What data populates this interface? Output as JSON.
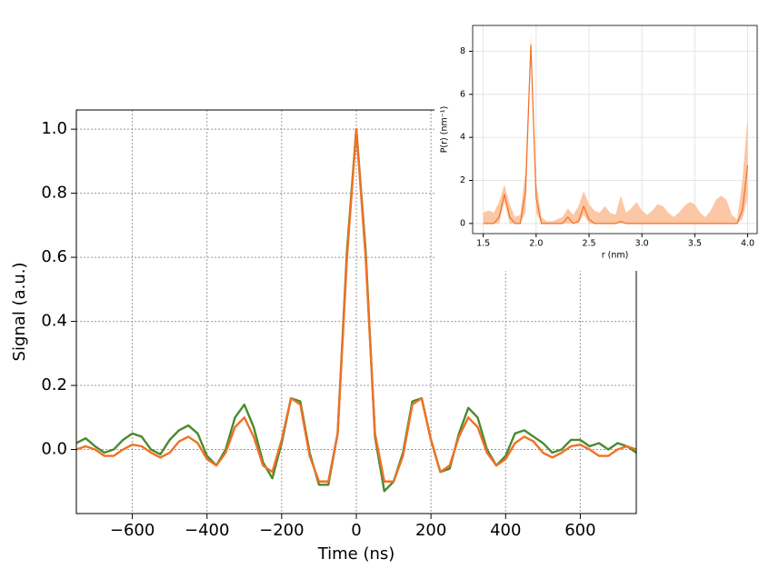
{
  "chart_data": [
    {
      "type": "line",
      "xlabel": "Time (ns)",
      "ylabel": "Signal (a.u.)",
      "x": [
        -750,
        -725,
        -700,
        -675,
        -650,
        -625,
        -600,
        -575,
        -550,
        -525,
        -500,
        -475,
        -450,
        -425,
        -400,
        -375,
        -350,
        -325,
        -300,
        -275,
        -250,
        -225,
        -200,
        -175,
        -150,
        -125,
        -100,
        -75,
        -50,
        -25,
        0,
        25,
        50,
        75,
        100,
        125,
        150,
        175,
        200,
        225,
        250,
        275,
        300,
        325,
        350,
        375,
        400,
        425,
        450,
        475,
        500,
        525,
        550,
        575,
        600,
        625,
        650,
        675,
        700,
        725,
        750
      ],
      "series": [
        {
          "color": "#4a8a2c",
          "values": [
            0.02,
            0.035,
            0.01,
            -0.01,
            0.0,
            0.03,
            0.05,
            0.04,
            0.0,
            -0.015,
            0.03,
            0.06,
            0.075,
            0.05,
            -0.02,
            -0.05,
            0.0,
            0.1,
            0.14,
            0.07,
            -0.04,
            -0.09,
            0.02,
            0.16,
            0.15,
            -0.01,
            -0.11,
            -0.11,
            0.05,
            0.62,
            1.0,
            0.62,
            0.04,
            -0.13,
            -0.1,
            -0.01,
            0.15,
            0.16,
            0.03,
            -0.07,
            -0.06,
            0.05,
            0.13,
            0.1,
            0.0,
            -0.05,
            -0.02,
            0.05,
            0.06,
            0.04,
            0.02,
            -0.01,
            0.0,
            0.03,
            0.03,
            0.01,
            0.02,
            0.0,
            0.02,
            0.01,
            -0.01
          ]
        },
        {
          "color": "#f07026",
          "values": [
            0,
            0.01,
            0,
            -0.02,
            -0.02,
            0,
            0.015,
            0.01,
            -0.01,
            -0.025,
            -0.01,
            0.025,
            0.04,
            0.02,
            -0.03,
            -0.05,
            -0.01,
            0.07,
            0.1,
            0.04,
            -0.05,
            -0.07,
            0.03,
            0.16,
            0.14,
            -0.02,
            -0.1,
            -0.1,
            0.05,
            0.6,
            1.0,
            0.6,
            0.05,
            -0.1,
            -0.1,
            -0.02,
            0.14,
            0.16,
            0.03,
            -0.07,
            -0.05,
            0.04,
            0.1,
            0.07,
            -0.01,
            -0.05,
            -0.03,
            0.02,
            0.04,
            0.025,
            -0.01,
            -0.025,
            -0.01,
            0.01,
            0.015,
            0,
            -0.02,
            -0.02,
            0,
            0.01,
            0
          ]
        }
      ],
      "xlim": [
        -750,
        750
      ],
      "ylim": [
        -0.2,
        1.06
      ],
      "xticks": [
        {
          "value": -600,
          "label": "−600"
        },
        {
          "value": -400,
          "label": "−400"
        },
        {
          "value": -200,
          "label": "−200"
        },
        0,
        200,
        400,
        600
      ],
      "yticks": [
        {
          "value": 0,
          "label": "0.0"
        },
        0.2,
        0.4,
        0.6,
        0.8,
        {
          "value": 1,
          "label": "1.0"
        }
      ],
      "grid": true
    },
    {
      "type": "line",
      "xlabel": "r (nm)",
      "ylabel": "P(r) (nm⁻¹)",
      "x": [
        1.5,
        1.55,
        1.6,
        1.65,
        1.7,
        1.75,
        1.8,
        1.85,
        1.9,
        1.95,
        2.0,
        2.05,
        2.1,
        2.15,
        2.2,
        2.25,
        2.3,
        2.35,
        2.4,
        2.45,
        2.5,
        2.55,
        2.6,
        2.65,
        2.7,
        2.75,
        2.8,
        2.85,
        2.9,
        2.95,
        3.0,
        3.05,
        3.1,
        3.15,
        3.2,
        3.25,
        3.3,
        3.35,
        3.4,
        3.45,
        3.5,
        3.55,
        3.6,
        3.65,
        3.7,
        3.75,
        3.8,
        3.85,
        3.9,
        3.95,
        4.0
      ],
      "series": [
        {
          "color": "#f07026",
          "values": [
            0,
            0,
            0,
            0.3,
            1.35,
            0.3,
            0,
            0,
            1.5,
            8.3,
            1.2,
            0,
            0,
            0,
            0,
            0,
            0.3,
            0,
            0.1,
            0.8,
            0.2,
            0,
            0,
            0,
            0,
            0,
            0.1,
            0,
            0,
            0,
            0,
            0,
            0,
            0,
            0,
            0,
            0,
            0,
            0,
            0,
            0,
            0,
            0,
            0,
            0,
            0,
            0,
            0,
            0,
            0.6,
            2.7
          ]
        }
      ],
      "band": {
        "color": "#fbc7a5",
        "upper": [
          0.5,
          0.6,
          0.5,
          1.0,
          1.8,
          0.9,
          0.3,
          0.4,
          2.5,
          8.8,
          2.0,
          0.3,
          0.1,
          0.1,
          0.2,
          0.3,
          0.7,
          0.4,
          0.8,
          1.5,
          0.9,
          0.6,
          0.5,
          0.8,
          0.5,
          0.4,
          1.3,
          0.5,
          0.7,
          1.0,
          0.6,
          0.4,
          0.6,
          0.9,
          0.8,
          0.5,
          0.3,
          0.5,
          0.8,
          1.0,
          0.9,
          0.5,
          0.3,
          0.6,
          1.1,
          1.3,
          1.1,
          0.4,
          0.2,
          2.0,
          5.0
        ],
        "lower": [
          0,
          0,
          0,
          0,
          1.0,
          0,
          0,
          0,
          0.5,
          7.8,
          0.5,
          0,
          0,
          0,
          0,
          0,
          0,
          0,
          0,
          0.4,
          0,
          0,
          0,
          0,
          0,
          0,
          0,
          0,
          0,
          0,
          0,
          0,
          0,
          0,
          0,
          0,
          0,
          0,
          0,
          0,
          0,
          0,
          0,
          0,
          0,
          0,
          0,
          0,
          0,
          0.2,
          1.2
        ]
      },
      "xlim": [
        1.4,
        4.09
      ],
      "ylim": [
        -0.47,
        9.2
      ],
      "xticks": [
        1.5,
        {
          "value": 2,
          "label": "2.0"
        },
        2.5,
        {
          "value": 3,
          "label": "3.0"
        },
        3.5,
        {
          "value": 4,
          "label": "4.0"
        }
      ],
      "yticks": [
        0,
        2,
        4,
        6,
        8
      ],
      "grid": true
    }
  ]
}
